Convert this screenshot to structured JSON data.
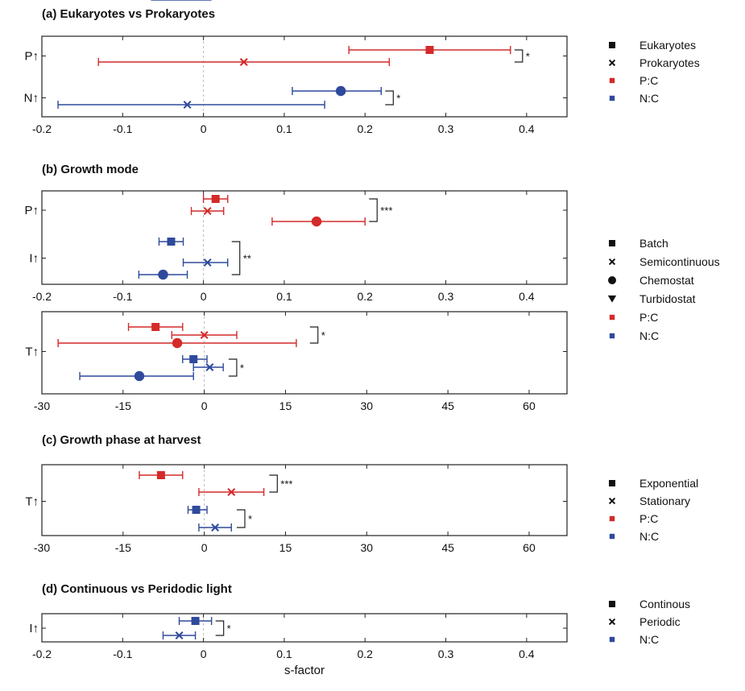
{
  "chart_data": [
    {
      "type": "errorbar",
      "title": "(a) Eukaryotes vs Prokaryotes",
      "xlim": [
        -0.2,
        0.45
      ],
      "xticks": [
        "-0.2",
        "-0.1",
        "0",
        "0.1",
        "0.2",
        "0.3",
        "0.4"
      ],
      "rows": [
        "P↑",
        "N↑"
      ],
      "points": [
        {
          "row": 0,
          "slot": 0,
          "marker": "square",
          "ratio": "P:C",
          "mean": 0.28,
          "lo": 0.18,
          "hi": 0.38
        },
        {
          "row": 0,
          "slot": 1,
          "marker": "x",
          "ratio": "P:C",
          "mean": 0.05,
          "lo": -0.13,
          "hi": 0.23
        },
        {
          "row": 1,
          "slot": 0,
          "marker": "circle",
          "ratio": "N:C",
          "mean": 0.17,
          "lo": 0.11,
          "hi": 0.22
        },
        {
          "row": 1,
          "slot": 1,
          "marker": "x",
          "ratio": "N:C",
          "mean": -0.02,
          "lo": -0.18,
          "hi": 0.15
        }
      ],
      "significance": [
        {
          "row": 0,
          "x": 0.385,
          "label": "*"
        },
        {
          "row": 1,
          "x": 0.225,
          "label": "*"
        }
      ],
      "legend": [
        {
          "marker": "square",
          "ratio": "",
          "label": "Eukaryotes"
        },
        {
          "marker": "x",
          "ratio": "",
          "label": "Prokaryotes"
        },
        {
          "marker": "legsquare",
          "ratio": "P:C",
          "label": "P:C"
        },
        {
          "marker": "legsquare",
          "ratio": "N:C",
          "label": "N:C"
        }
      ]
    },
    {
      "type": "errorbar",
      "title": "(b) Growth mode",
      "xlim": [
        -0.2,
        0.45
      ],
      "xticks": [
        "-0.2",
        "-0.1",
        "0",
        "0.1",
        "0.2",
        "0.3",
        "0.4"
      ],
      "rows": [
        "P↑",
        "I↑"
      ],
      "points": [
        {
          "row": 0,
          "slot": 0,
          "marker": "square",
          "ratio": "P:C",
          "mean": 0.015,
          "lo": 0.0,
          "hi": 0.03
        },
        {
          "row": 0,
          "slot": 1,
          "marker": "x",
          "ratio": "P:C",
          "mean": 0.005,
          "lo": -0.015,
          "hi": 0.025
        },
        {
          "row": 0,
          "slot": 2,
          "marker": "circle",
          "ratio": "P:C",
          "mean": 0.14,
          "lo": 0.085,
          "hi": 0.2
        },
        {
          "row": 1,
          "slot": 0,
          "marker": "square",
          "ratio": "N:C",
          "mean": -0.04,
          "lo": -0.055,
          "hi": -0.025
        },
        {
          "row": 1,
          "slot": 1,
          "marker": "x",
          "ratio": "N:C",
          "mean": 0.005,
          "lo": -0.025,
          "hi": 0.03
        },
        {
          "row": 1,
          "slot": 2,
          "marker": "circle",
          "ratio": "N:C",
          "mean": -0.05,
          "lo": -0.08,
          "hi": -0.02
        },
        {
          "row": 1,
          "slot": 3,
          "marker": "triangle",
          "ratio": "N:C",
          "mean": -0.03,
          "lo": -0.065,
          "hi": 0.01
        }
      ],
      "significance": [
        {
          "row": 0,
          "x": 0.205,
          "label": "***"
        },
        {
          "row": 1,
          "x": 0.035,
          "label": "**"
        }
      ]
    },
    {
      "type": "errorbar",
      "title": "",
      "xlim": [
        -30,
        67
      ],
      "xticks": [
        "-30",
        "-15",
        "0",
        "15",
        "30",
        "45",
        "60"
      ],
      "rows": [
        "T↑"
      ],
      "points": [
        {
          "row": 0,
          "slot": 0,
          "marker": "square",
          "ratio": "P:C",
          "mean": -9,
          "lo": -14,
          "hi": -4
        },
        {
          "row": 0,
          "slot": 1,
          "marker": "x",
          "ratio": "P:C",
          "mean": 0,
          "lo": -6,
          "hi": 6
        },
        {
          "row": 0,
          "slot": 2,
          "marker": "circle",
          "ratio": "P:C",
          "mean": -5,
          "lo": -27,
          "hi": 17
        },
        {
          "row": 0,
          "slot": 3,
          "marker": "square",
          "ratio": "N:C",
          "mean": -2,
          "lo": -4,
          "hi": 0.5
        },
        {
          "row": 0,
          "slot": 4,
          "marker": "x",
          "ratio": "N:C",
          "mean": 1,
          "lo": -2,
          "hi": 3.5
        },
        {
          "row": 0,
          "slot": 5,
          "marker": "circle",
          "ratio": "N:C",
          "mean": -12,
          "lo": -23,
          "hi": -2
        }
      ],
      "significance": [
        {
          "span": [
            0,
            2
          ],
          "x": 19.5,
          "label": "*"
        },
        {
          "span": [
            3,
            5
          ],
          "x": 4.5,
          "label": "*"
        }
      ],
      "legend": [
        {
          "marker": "square",
          "ratio": "",
          "label": "Batch"
        },
        {
          "marker": "x",
          "ratio": "",
          "label": "Semicontinuous"
        },
        {
          "marker": "circle",
          "ratio": "",
          "label": "Chemostat"
        },
        {
          "marker": "triangle",
          "ratio": "",
          "label": "Turbidostat"
        },
        {
          "marker": "legsquare",
          "ratio": "P:C",
          "label": "P:C"
        },
        {
          "marker": "legsquare",
          "ratio": "N:C",
          "label": "N:C"
        }
      ]
    },
    {
      "type": "errorbar",
      "title": "(c) Growth phase at harvest",
      "xlim": [
        -30,
        67
      ],
      "xticks": [
        "-30",
        "-15",
        "0",
        "15",
        "30",
        "45",
        "60"
      ],
      "rows": [
        "T↑"
      ],
      "points": [
        {
          "row": 0,
          "slot": 0,
          "marker": "square",
          "ratio": "P:C",
          "mean": -8,
          "lo": -12,
          "hi": -4
        },
        {
          "row": 0,
          "slot": 1,
          "marker": "x",
          "ratio": "P:C",
          "mean": 5,
          "lo": -1,
          "hi": 11
        },
        {
          "row": 0,
          "slot": 2,
          "marker": "square",
          "ratio": "N:C",
          "mean": -1.5,
          "lo": -3,
          "hi": 0.5
        },
        {
          "row": 0,
          "slot": 3,
          "marker": "x",
          "ratio": "N:C",
          "mean": 2,
          "lo": -1,
          "hi": 5
        }
      ],
      "significance": [
        {
          "span": [
            0,
            1
          ],
          "x": 12,
          "label": "***"
        },
        {
          "span": [
            2,
            3
          ],
          "x": 6,
          "label": "*"
        }
      ],
      "legend": [
        {
          "marker": "square",
          "ratio": "",
          "label": "Exponential"
        },
        {
          "marker": "x",
          "ratio": "",
          "label": "Stationary"
        },
        {
          "marker": "legsquare",
          "ratio": "P:C",
          "label": "P:C"
        },
        {
          "marker": "legsquare",
          "ratio": "N:C",
          "label": "N:C"
        }
      ]
    },
    {
      "type": "errorbar",
      "title": "(d) Continuous vs Peridodic light",
      "xlim": [
        -0.2,
        0.45
      ],
      "xticks": [
        "-0.2",
        "-0.1",
        "0",
        "0.1",
        "0.2",
        "0.3",
        "0.4"
      ],
      "xlabel": "s-factor",
      "rows": [
        "I↑"
      ],
      "points": [
        {
          "row": 0,
          "slot": 0,
          "marker": "square",
          "ratio": "N:C",
          "mean": -0.01,
          "lo": -0.03,
          "hi": 0.01
        },
        {
          "row": 0,
          "slot": 1,
          "marker": "x",
          "ratio": "N:C",
          "mean": -0.03,
          "lo": -0.05,
          "hi": -0.01
        }
      ],
      "significance": [
        {
          "span": [
            0,
            1
          ],
          "x": 0.015,
          "label": "*"
        }
      ],
      "legend": [
        {
          "marker": "square",
          "ratio": "",
          "label": "Continous"
        },
        {
          "marker": "x",
          "ratio": "",
          "label": "Periodic"
        },
        {
          "marker": "legsquare",
          "ratio": "N:C",
          "label": "N:C"
        }
      ]
    }
  ],
  "colors": {
    "P:C": "#d42a2a",
    "N:C": "#2f4a9c",
    "axis": "#222222",
    "zero": "#bbbbbb",
    "text": "#111111"
  }
}
